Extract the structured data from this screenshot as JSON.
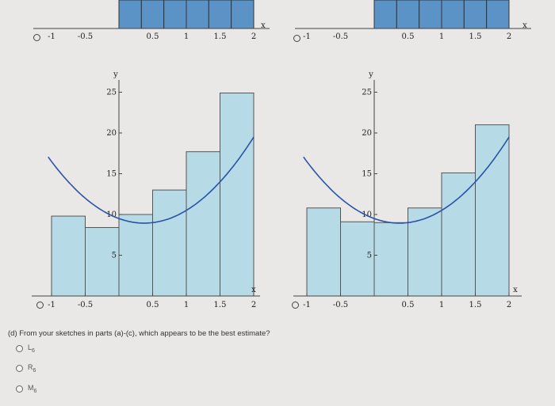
{
  "top_left_graph": {
    "x_ticks": [
      "-1",
      "-0.5",
      "0.5",
      "1",
      "1.5",
      "2"
    ],
    "x_label": "x"
  },
  "top_right_graph": {
    "x_ticks": [
      "-1",
      "-0.5",
      "0.5",
      "1",
      "1.5",
      "2"
    ],
    "x_label": "x"
  },
  "graph_left": {
    "x_label": "x",
    "y_label": "y",
    "x_ticks": [
      "-1",
      "-0.5",
      "0.5",
      "1",
      "1.5",
      "2"
    ],
    "y_ticks": [
      "5",
      "10",
      "15",
      "20",
      "25"
    ],
    "rect_heights": [
      9.8,
      8.4,
      10,
      13,
      17.7,
      24.9
    ],
    "colors": {
      "fill": "#b6dae6",
      "stroke": "#555555",
      "curve": "#2a52a8",
      "top_fill": "#5a8fc4"
    }
  },
  "graph_right": {
    "x_label": "x",
    "y_label": "y",
    "x_ticks": [
      "-1",
      "-0.5",
      "0.5",
      "1",
      "1.5",
      "2"
    ],
    "y_ticks": [
      "5",
      "10",
      "15",
      "20",
      "25"
    ],
    "rect_heights": [
      10.8,
      9.1,
      9,
      10.8,
      15.1,
      21
    ],
    "colors": {
      "fill": "#b6dae6",
      "stroke": "#555555",
      "curve": "#2a52a8"
    }
  },
  "question": {
    "text": "(d) From your sketches in parts (a)-(c), which appears to be the best estimate?",
    "choices": [
      {
        "letter": "L",
        "sub": "6"
      },
      {
        "letter": "R",
        "sub": "6"
      },
      {
        "letter": "M",
        "sub": "6"
      }
    ]
  }
}
